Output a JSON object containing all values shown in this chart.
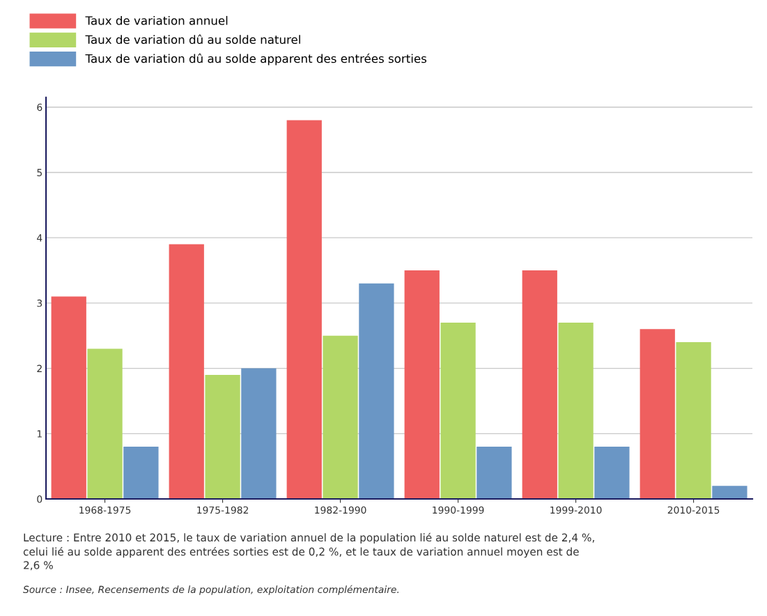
{
  "chart_data": {
    "type": "bar",
    "categories": [
      "1968-1975",
      "1975-1982",
      "1982-1990",
      "1990-1999",
      "1999-2010",
      "2010-2015"
    ],
    "series": [
      {
        "name": "Taux de variation annuel",
        "color": "#ef5f5f",
        "values": [
          3.1,
          3.9,
          5.8,
          3.5,
          3.5,
          2.6
        ]
      },
      {
        "name": "Taux de variation dû au solde naturel",
        "color": "#b2d766",
        "values": [
          2.3,
          1.9,
          2.5,
          2.7,
          2.7,
          2.4
        ]
      },
      {
        "name": "Taux de variation dû au solde apparent des entrées sorties",
        "color": "#6a96c5",
        "values": [
          0.8,
          2.0,
          3.3,
          0.8,
          0.8,
          0.2
        ]
      }
    ],
    "ylim": [
      0,
      6.15
    ],
    "yticks": [
      0,
      1,
      2,
      3,
      4,
      5,
      6
    ],
    "grid": "y",
    "legend": "top left",
    "annotations": [
      "Lecture : Entre 2010 et 2015, le taux de variation annuel de la population lié au solde naturel est de 2,4 %,\ncelui lié au solde apparent des entrées sorties est de 0,2 %, et le taux de variation annuel moyen est de\n2,6 %",
      "Source : Insee, Recensements de la population, exploitation complémentaire."
    ]
  }
}
